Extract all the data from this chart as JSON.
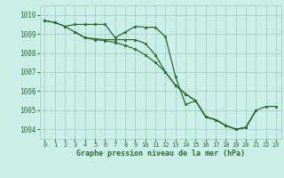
{
  "title": "Graphe pression niveau de la mer (hPa)",
  "bg_color": "#cceee8",
  "grid_color": "#aad4ce",
  "line_color": "#2d6a2d",
  "xlim": [
    -0.5,
    23.5
  ],
  "ylim": [
    1003.5,
    1010.5
  ],
  "yticks": [
    1004,
    1005,
    1006,
    1007,
    1008,
    1009,
    1010
  ],
  "xticks": [
    0,
    1,
    2,
    3,
    4,
    5,
    6,
    7,
    8,
    9,
    10,
    11,
    12,
    13,
    14,
    15,
    16,
    17,
    18,
    19,
    20,
    21,
    22,
    23
  ],
  "series1_x": [
    0,
    1,
    2,
    3,
    4,
    5,
    6,
    7,
    8,
    9,
    10,
    11,
    12,
    13,
    14,
    15,
    16,
    17,
    18,
    19,
    20,
    21
  ],
  "series1_y": [
    1009.7,
    1009.6,
    1009.4,
    1009.5,
    1009.5,
    1009.5,
    1009.5,
    1008.8,
    1009.1,
    1009.4,
    1009.35,
    1009.35,
    1008.85,
    1006.75,
    1005.3,
    1005.5,
    1004.65,
    1004.5,
    1004.2,
    1004.0,
    1004.1,
    1005.0
  ],
  "series2_x": [
    0,
    1,
    2,
    3,
    4,
    5,
    6,
    7,
    8,
    9,
    10,
    11,
    12,
    13,
    14,
    15,
    16,
    17,
    18,
    19,
    20,
    21
  ],
  "series2_y": [
    1009.7,
    1009.6,
    1009.4,
    1009.1,
    1008.8,
    1008.75,
    1008.7,
    1008.7,
    1008.7,
    1008.7,
    1008.5,
    1007.9,
    1007.0,
    1006.3,
    1005.85,
    1005.5,
    1004.65,
    1004.5,
    1004.2,
    1004.0,
    1004.1,
    1005.0
  ],
  "series3_x": [
    3,
    4,
    5,
    6,
    7,
    8,
    9,
    10,
    11,
    12,
    13,
    14,
    15,
    16,
    17,
    18,
    19,
    20,
    21,
    22,
    23
  ],
  "series3_y": [
    1009.1,
    1008.8,
    1008.7,
    1008.65,
    1008.55,
    1008.4,
    1008.2,
    1007.9,
    1007.5,
    1007.0,
    1006.3,
    1005.85,
    1005.5,
    1004.65,
    1004.5,
    1004.2,
    1004.0,
    1004.1,
    1005.0,
    1005.2,
    1005.2
  ]
}
